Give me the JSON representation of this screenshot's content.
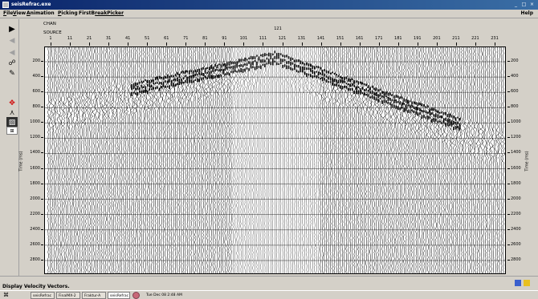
{
  "window": {
    "title": "seisRefrac.exe",
    "minimize": "_",
    "maximize": "□",
    "close": "×"
  },
  "menu": {
    "items": [
      {
        "label": "File",
        "key": "F",
        "rest": "ile"
      },
      {
        "label": "View",
        "key": "V",
        "rest": "iew"
      },
      {
        "label": "Animation",
        "key": "A",
        "rest": "nimation"
      },
      {
        "label": "Picking",
        "key": "P",
        "rest": "icking"
      },
      {
        "label": "FirstBreakPicker",
        "key": "FirstB",
        "rest": "reakPicker"
      }
    ],
    "help": "Help"
  },
  "toolbar": {
    "tools": [
      {
        "name": "play-forward",
        "glyph": "▶"
      },
      {
        "name": "step-back",
        "glyph": "◀"
      },
      {
        "name": "step-back-2",
        "glyph": "◀"
      },
      {
        "name": "trace-select",
        "glyph": "☍"
      },
      {
        "name": "trace-edit",
        "glyph": "✎"
      },
      {
        "name": "blank",
        "glyph": ""
      },
      {
        "name": "gray-1",
        "glyph": ""
      },
      {
        "name": "move-cross",
        "glyph": "✥"
      },
      {
        "name": "pick-line",
        "glyph": "⋏"
      },
      {
        "name": "variable-density",
        "glyph": "▨"
      },
      {
        "name": "zoom-box",
        "glyph": "⊞"
      }
    ],
    "accent": "#d00000"
  },
  "header": {
    "chan_label": "CHAN",
    "source_label": "SOURCE",
    "source_value": "121",
    "chan_ticks": [
      "1",
      "11",
      "21",
      "31",
      "41",
      "51",
      "61",
      "71",
      "81",
      "91",
      "101",
      "111",
      "121",
      "131",
      "141",
      "151",
      "161",
      "171",
      "181",
      "191",
      "201",
      "211",
      "221",
      "231"
    ]
  },
  "axis": {
    "title": "Time (ms)",
    "ticks": [
      "200",
      "400",
      "600",
      "800",
      "1000",
      "1200",
      "1400",
      "1600",
      "1800",
      "2000",
      "2200",
      "2400",
      "2600",
      "2800"
    ]
  },
  "status": {
    "message": "Display Velocity Vectors."
  },
  "taskbar": {
    "tasks": [
      "seisRefrac",
      "FinalMX-2",
      "Fraktur-A",
      "seisRefrac"
    ],
    "clock": "Tue Dec 08  2:48 AM"
  }
}
